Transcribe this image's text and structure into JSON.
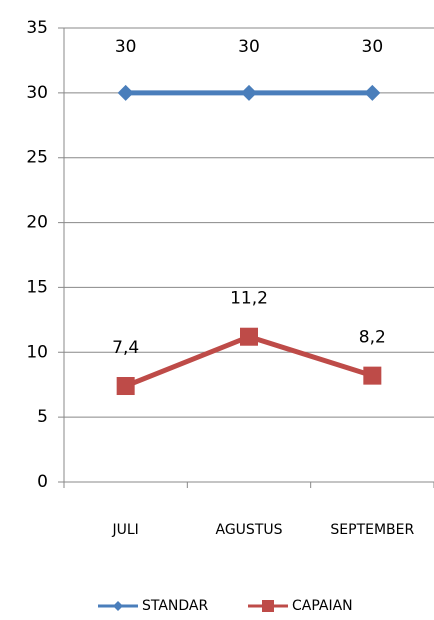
{
  "chart_data": {
    "type": "line",
    "categories": [
      "JULI",
      "AGUSTUS",
      "SEPTEMBER"
    ],
    "series": [
      {
        "name": "STANDAR",
        "color": "#4a7ebb",
        "marker": "diamond",
        "values": [
          30,
          30,
          30
        ]
      },
      {
        "name": "CAPAIAN",
        "color": "#be4b48",
        "marker": "square",
        "values": [
          7.4,
          11.2,
          8.2
        ],
        "value_labels": [
          "7,4",
          "11,2",
          "8,2"
        ]
      }
    ],
    "ylim": [
      0,
      35
    ],
    "yticks": [
      0,
      5,
      10,
      15,
      20,
      25,
      30,
      35
    ],
    "grid": true,
    "legend": "bottom"
  }
}
